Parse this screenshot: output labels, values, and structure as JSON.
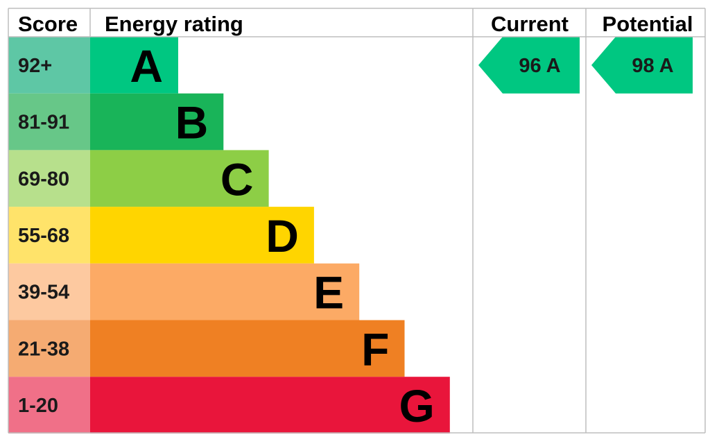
{
  "header": {
    "score_label": "Score",
    "rating_label": "Energy rating",
    "current_label": "Current",
    "potential_label": "Potential"
  },
  "chart_data": {
    "type": "bar",
    "bands": [
      {
        "letter": "A",
        "range": "92+",
        "min": 92,
        "max": 100,
        "color": "#00c781",
        "score_bg": "#5ec7a5"
      },
      {
        "letter": "B",
        "range": "81-91",
        "min": 81,
        "max": 91,
        "color": "#19b459",
        "score_bg": "#67c788"
      },
      {
        "letter": "C",
        "range": "69-80",
        "min": 69,
        "max": 80,
        "color": "#8dce46",
        "score_bg": "#b7e08c"
      },
      {
        "letter": "D",
        "range": "55-68",
        "min": 55,
        "max": 68,
        "color": "#ffd500",
        "score_bg": "#ffe36a"
      },
      {
        "letter": "E",
        "range": "39-54",
        "min": 39,
        "max": 54,
        "color": "#fcaa65",
        "score_bg": "#fdc9a0"
      },
      {
        "letter": "F",
        "range": "21-38",
        "min": 21,
        "max": 38,
        "color": "#ef8023",
        "score_bg": "#f5ab72"
      },
      {
        "letter": "G",
        "range": "1-20",
        "min": 1,
        "max": 20,
        "color": "#e9153b",
        "score_bg": "#f07088"
      }
    ],
    "current": {
      "value": 96,
      "band": "A",
      "label": "96  A",
      "color": "#00c781"
    },
    "potential": {
      "value": 98,
      "band": "A",
      "label": "98  A",
      "color": "#00c781"
    }
  }
}
